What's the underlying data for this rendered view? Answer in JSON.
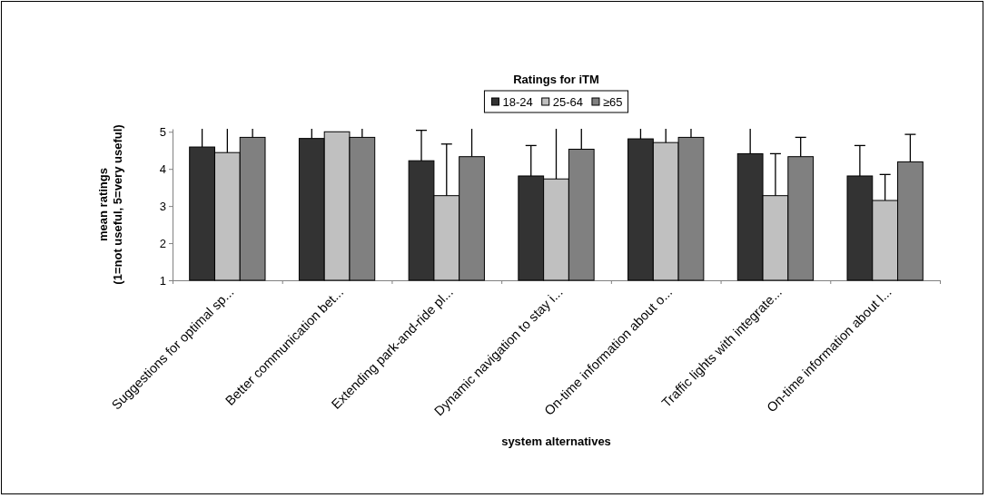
{
  "chart_data": {
    "type": "bar",
    "title": "Ratings for iTM",
    "xlabel": "system alternatives",
    "ylabel": "mean ratings\n(1=not useful, 5=very useful)",
    "categories": [
      "Suggestions for optimal sp...",
      "Better communication bet...",
      "Extending park-and-ride pl...",
      "Dynamic navigation to stay i...",
      "On-time information about o...",
      "Traffic lights with integrate...",
      "On-time information about l..."
    ],
    "series": [
      {
        "name": "18-24",
        "color": "#333333",
        "values": [
          4.59,
          4.82,
          4.22,
          3.81,
          4.81,
          4.41,
          3.81
        ],
        "errors": [
          [
            4.59,
            5.08
          ],
          [
            4.82,
            5.08
          ],
          [
            4.22,
            5.04
          ],
          [
            3.81,
            4.63
          ],
          [
            4.81,
            5.08
          ],
          [
            4.41,
            5.08
          ],
          [
            3.81,
            4.63
          ]
        ]
      },
      {
        "name": "25-64",
        "color": "#c0c0c0",
        "values": [
          4.44,
          5.0,
          3.28,
          3.73,
          4.71,
          3.28,
          3.15
        ],
        "errors": [
          [
            4.44,
            5.08
          ],
          null,
          [
            3.28,
            4.67
          ],
          [
            3.73,
            5.08
          ],
          [
            4.71,
            5.08
          ],
          [
            3.28,
            4.41
          ],
          [
            3.15,
            3.85
          ]
        ]
      },
      {
        "name": "≥65",
        "color": "#808080",
        "values": [
          4.85,
          4.85,
          4.33,
          4.53,
          4.85,
          4.33,
          4.19
        ],
        "errors": [
          [
            4.85,
            5.08
          ],
          [
            4.85,
            5.08
          ],
          [
            4.33,
            5.08
          ],
          [
            4.53,
            5.08
          ],
          [
            4.85,
            5.08
          ],
          [
            4.33,
            4.85
          ],
          [
            4.19,
            4.93
          ]
        ]
      }
    ],
    "ylim": [
      1,
      5.08
    ],
    "yticks": [
      1,
      2,
      3,
      4,
      5
    ],
    "legend": "top",
    "grid": false
  }
}
